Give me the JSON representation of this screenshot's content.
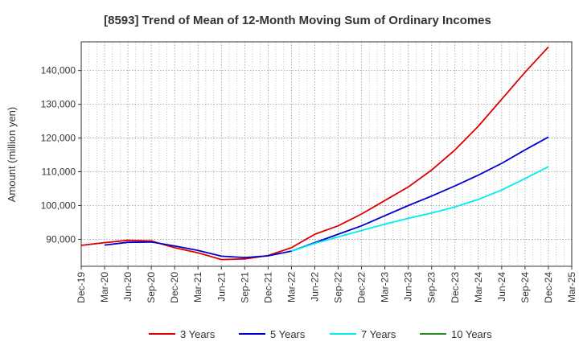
{
  "chart_data": {
    "type": "line",
    "title": "[8593]  Trend of Mean of 12-Month Moving Sum of Ordinary Incomes",
    "xlabel": "",
    "ylabel": "Amount (million yen)",
    "ylim": [
      82000,
      148500
    ],
    "yticks": [
      90000,
      100000,
      110000,
      120000,
      130000,
      140000
    ],
    "ytick_labels": [
      "90,000",
      "100,000",
      "110,000",
      "120,000",
      "130,000",
      "140,000"
    ],
    "categories": [
      "Dec-19",
      "Mar-20",
      "Jun-20",
      "Sep-20",
      "Dec-20",
      "Mar-21",
      "Jun-21",
      "Sep-21",
      "Dec-21",
      "Mar-22",
      "Jun-22",
      "Sep-22",
      "Dec-22",
      "Mar-23",
      "Jun-23",
      "Sep-23",
      "Dec-23",
      "Mar-24",
      "Jun-24",
      "Sep-24",
      "Dec-24",
      "Mar-25"
    ],
    "grid": true,
    "legend_position": "bottom",
    "series": [
      {
        "name": "3 Years",
        "color": "#dd0000",
        "values": [
          88200,
          89000,
          89700,
          89500,
          87500,
          86000,
          84000,
          84200,
          85200,
          87500,
          91500,
          94000,
          97500,
          101500,
          105500,
          110500,
          116500,
          123500,
          131500,
          139500,
          147000,
          null
        ]
      },
      {
        "name": "5 Years",
        "color": "#0000cc",
        "values": [
          null,
          88300,
          89100,
          89200,
          88000,
          86700,
          85000,
          84600,
          85100,
          86500,
          89000,
          91500,
          94000,
          97000,
          100000,
          102800,
          105800,
          109000,
          112500,
          116500,
          120300,
          null
        ]
      },
      {
        "name": "7 Years",
        "color": "#00eeee",
        "values": [
          null,
          null,
          null,
          null,
          null,
          null,
          null,
          null,
          null,
          86500,
          88800,
          90700,
          92600,
          94500,
          96200,
          97800,
          99600,
          101800,
          104600,
          108000,
          111500,
          null
        ]
      },
      {
        "name": "10 Years",
        "color": "#228b22",
        "values": [
          null,
          null,
          null,
          null,
          null,
          null,
          null,
          null,
          null,
          null,
          null,
          null,
          null,
          null,
          null,
          null,
          null,
          null,
          null,
          null,
          null,
          null
        ]
      }
    ]
  }
}
